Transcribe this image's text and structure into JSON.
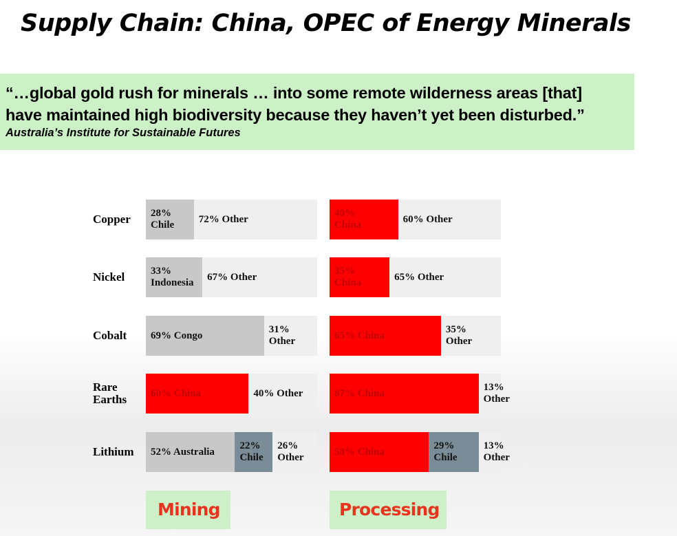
{
  "slide": {
    "title": "Supply Chain: China, OPEC of Energy Minerals",
    "quote_lines": [
      "“…global gold rush for minerals … into some remote wilderness areas [that]",
      "have maintained high biodiversity because they haven’t yet been disturbed.”"
    ],
    "quote_source": "Australia’s Institute for Sustainable Futures"
  },
  "colors": {
    "china": "#ff0000",
    "other_share": "#c8c8c8",
    "chile_lithium": "#798c97",
    "remainder": "#efefef",
    "quote_bg": "#ccf1c7",
    "category_text": "#e8341e"
  },
  "chart_data": {
    "type": "bar",
    "stacked": true,
    "orientation": "horizontal",
    "unit": "%",
    "categories": [
      "Copper",
      "Nickel",
      "Cobalt",
      "Rare Earths",
      "Lithium"
    ],
    "category_labels": [
      "Copper",
      "Nickel",
      "Cobalt",
      "Rare\nEarths",
      "Lithium"
    ],
    "panels": [
      {
        "name": "Mining",
        "rows": [
          {
            "segments": [
              {
                "label": "28%\nChile",
                "value": 28,
                "color": "#c8c8c8"
              },
              {
                "label": "72% Other",
                "value": 72,
                "color": "#efefef"
              }
            ]
          },
          {
            "segments": [
              {
                "label": "33%\nIndonesia",
                "value": 33,
                "color": "#c8c8c8"
              },
              {
                "label": "67% Other",
                "value": 67,
                "color": "#efefef"
              }
            ]
          },
          {
            "segments": [
              {
                "label": "69% Congo",
                "value": 69,
                "color": "#c8c8c8"
              },
              {
                "label": "31%\nOther",
                "value": 31,
                "color": "#efefef"
              }
            ]
          },
          {
            "segments": [
              {
                "label": "60% China",
                "value": 60,
                "color": "#ff0000"
              },
              {
                "label": "40% Other",
                "value": 40,
                "color": "#efefef"
              }
            ]
          },
          {
            "segments": [
              {
                "label": "52% Australia",
                "value": 52,
                "color": "#c8c8c8"
              },
              {
                "label": "22%\nChile",
                "value": 22,
                "color": "#798c97"
              },
              {
                "label": "26%\nOther",
                "value": 26,
                "color": "#efefef"
              }
            ]
          }
        ]
      },
      {
        "name": "Processing",
        "rows": [
          {
            "segments": [
              {
                "label": "40%\nChina",
                "value": 40,
                "color": "#ff0000"
              },
              {
                "label": "60% Other",
                "value": 60,
                "color": "#efefef"
              }
            ]
          },
          {
            "segments": [
              {
                "label": "35%\nChina",
                "value": 35,
                "color": "#ff0000"
              },
              {
                "label": "65% Other",
                "value": 65,
                "color": "#efefef"
              }
            ]
          },
          {
            "segments": [
              {
                "label": "65% China",
                "value": 65,
                "color": "#ff0000"
              },
              {
                "label": "35%\nOther",
                "value": 35,
                "color": "#efefef"
              }
            ]
          },
          {
            "segments": [
              {
                "label": "87% China",
                "value": 87,
                "color": "#ff0000"
              },
              {
                "label": "13%\nOther",
                "value": 13,
                "color": "#efefef"
              }
            ]
          },
          {
            "segments": [
              {
                "label": "58% China",
                "value": 58,
                "color": "#ff0000"
              },
              {
                "label": "29%\nChile",
                "value": 29,
                "color": "#798c97"
              },
              {
                "label": "13%\nOther",
                "value": 13,
                "color": "#efefef"
              }
            ]
          }
        ]
      }
    ]
  }
}
